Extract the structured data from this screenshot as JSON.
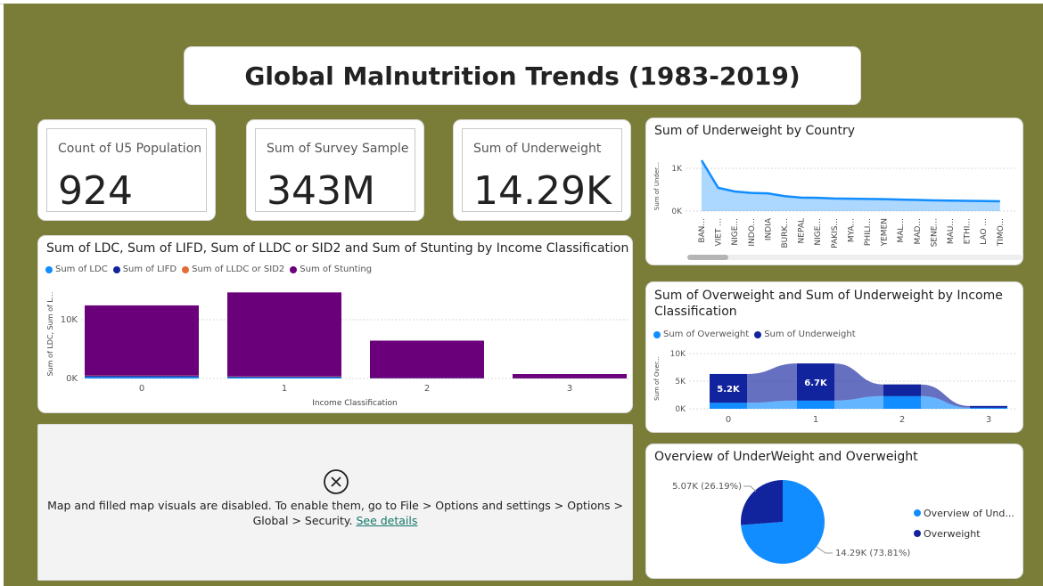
{
  "title": "Global Malnutrition Trends (1983-2019)",
  "kpis": [
    {
      "label": "Count of U5 Population",
      "value": "924"
    },
    {
      "label": "Sum of Survey Sample",
      "value": "343M"
    },
    {
      "label": "Sum of Underweight",
      "value": "14.29K"
    }
  ],
  "stunting_chart": {
    "title": "Sum of LDC, Sum of LIFD, Sum of LLDC or SID2 and Sum of Stunting by Income Classification",
    "legend": [
      "Sum of LDC",
      "Sum of LIFD",
      "Sum of LLDC or SID2",
      "Sum of Stunting"
    ],
    "ylabel": "Sum of LDC, Sum of L...",
    "xlabel": "Income Classification",
    "yticks": [
      "10K",
      "0K"
    ]
  },
  "underweight_country_chart": {
    "title": "Sum of Underweight by Country",
    "ylabel": "Sum of Under...",
    "yticks": [
      "1K",
      "0K"
    ]
  },
  "overunder_chart": {
    "title_line1": "Sum of Overweight and Sum of Underweight by Income",
    "title_line2": "Classification",
    "legend": [
      "Sum of Overweight",
      "Sum of Underweight"
    ],
    "ylabel": "Sum of Over...",
    "yticks": [
      "10K",
      "5K",
      "0K"
    ]
  },
  "pie_chart": {
    "title": "Overview of UnderWeight and Overweight",
    "legend": [
      "Overview of Und...",
      "Overweight"
    ]
  },
  "map_message": {
    "text": "Map and filled map visuals are disabled. To enable them, go to File > Options and settings > Options > Global > Security.",
    "link": "See details"
  },
  "chart_data": [
    {
      "type": "bar",
      "title": "Sum of LDC, Sum of LIFD, Sum of LLDC or SID2 and Sum of Stunting by Income Classification",
      "xlabel": "Income Classification",
      "ylabel": "Sum of LDC, Sum of L...",
      "categories": [
        "0",
        "1",
        "2",
        "3"
      ],
      "stacked": true,
      "series": [
        {
          "name": "Sum of LDC",
          "color": "#118dff",
          "values": [
            200,
            150,
            20,
            5
          ]
        },
        {
          "name": "Sum of LIFD",
          "color": "#12239e",
          "values": [
            150,
            100,
            30,
            5
          ]
        },
        {
          "name": "Sum of LLDC or SID2",
          "color": "#e66c37",
          "values": [
            50,
            40,
            10,
            5
          ]
        },
        {
          "name": "Sum of Stunting",
          "color": "#6b007b",
          "values": [
            9450,
            11310,
            5040,
            585
          ]
        }
      ],
      "ylim": [
        0,
        12000
      ],
      "legend": "top-left"
    },
    {
      "type": "area",
      "title": "Sum of Underweight by Country",
      "ylabel": "Sum of Under...",
      "categories": [
        "BAN...",
        "VIET ...",
        "NIGE...",
        "INDO...",
        "INDIA",
        "BURK...",
        "NEPAL",
        "NIGE...",
        "PAKIS...",
        "MYA...",
        "PHILI...",
        "YEMEN",
        "MAL...",
        "MAD...",
        "SENE...",
        "MAU...",
        "ETHI...",
        "LAO ...",
        "TIMO..."
      ],
      "values": [
        1090,
        500,
        420,
        390,
        380,
        320,
        290,
        285,
        270,
        265,
        260,
        255,
        245,
        240,
        230,
        225,
        220,
        215,
        210
      ],
      "ylim": [
        0,
        1300
      ],
      "color": "#118dff"
    },
    {
      "type": "area",
      "title": "Sum of Overweight and Sum of Underweight by Income Classification",
      "ylabel": "Sum of Over...",
      "categories": [
        "0",
        "1",
        "2",
        "3"
      ],
      "stacked": true,
      "series": [
        {
          "name": "Sum of Overweight",
          "color": "#118dff",
          "values": [
            1100,
            1500,
            2300,
            200
          ]
        },
        {
          "name": "Sum of Underweight",
          "color": "#12239e",
          "values": [
            5200,
            6700,
            2100,
            300
          ]
        }
      ],
      "data_labels": [
        "5.2K",
        "6.7K"
      ],
      "ylim": [
        0,
        10000
      ],
      "legend": "top-left"
    },
    {
      "type": "pie",
      "title": "Overview of UnderWeight and Overweight",
      "slices": [
        {
          "name": "Overview of Und...",
          "value": 14290,
          "label": "14.29K (73.81%)",
          "color": "#118dff"
        },
        {
          "name": "Overweight",
          "value": 5070,
          "label": "5.07K (26.19%)",
          "color": "#12239e"
        }
      ],
      "legend": "right"
    }
  ]
}
